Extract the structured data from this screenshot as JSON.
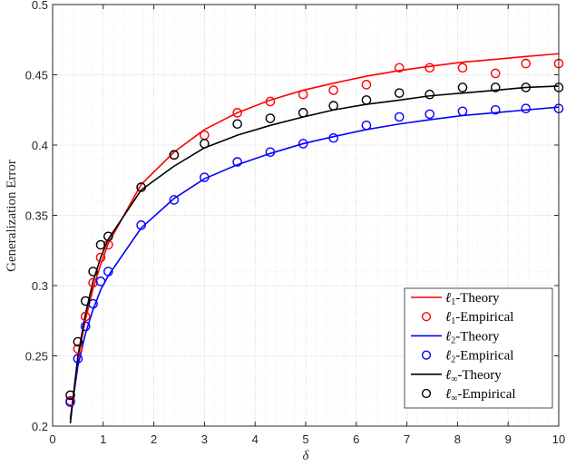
{
  "chart_data": {
    "type": "line",
    "title": "",
    "xlabel": "δ",
    "ylabel": "Generalization Error",
    "xlim": [
      0,
      10
    ],
    "ylim": [
      0.2,
      0.5
    ],
    "xticks": [
      0,
      1,
      2,
      3,
      4,
      5,
      6,
      7,
      8,
      9,
      10
    ],
    "yticks": [
      0.2,
      0.25,
      0.3,
      0.35,
      0.4,
      0.45,
      0.5
    ],
    "xtick_labels": [
      "0",
      "1",
      "2",
      "3",
      "4",
      "5",
      "6",
      "7",
      "8",
      "9",
      "10"
    ],
    "ytick_labels": [
      "0.2",
      "0.25",
      "0.3",
      "0.35",
      "0.4",
      "0.45",
      "0.5"
    ],
    "grid": true,
    "minor_grid": true,
    "legend_position": "lower right",
    "x": [
      0.35,
      0.5,
      0.65,
      0.8,
      0.95,
      1.1,
      1.75,
      2.4,
      3.0,
      3.65,
      4.3,
      4.95,
      5.55,
      6.2,
      6.85,
      7.45,
      8.1,
      8.75,
      9.35,
      10.0
    ],
    "series": [
      {
        "name": "ℓ1-Theory",
        "kind": "line",
        "color": "#ff0000",
        "values": [
          0.205,
          0.248,
          0.276,
          0.298,
          0.315,
          0.33,
          0.372,
          0.395,
          0.411,
          0.423,
          0.432,
          0.439,
          0.444,
          0.449,
          0.453,
          0.456,
          0.459,
          0.461,
          0.463,
          0.465
        ]
      },
      {
        "name": "ℓ1-Empirical",
        "kind": "marker",
        "color": "#ff0000",
        "values": [
          0.218,
          0.255,
          0.278,
          0.302,
          0.32,
          0.329,
          0.37,
          0.393,
          0.407,
          0.423,
          0.431,
          0.436,
          0.439,
          0.443,
          0.455,
          0.455,
          0.455,
          0.451,
          0.458,
          0.458
        ]
      },
      {
        "name": "ℓ2-Theory",
        "kind": "line",
        "color": "#0000ff",
        "values": [
          0.205,
          0.243,
          0.266,
          0.283,
          0.297,
          0.307,
          0.341,
          0.362,
          0.376,
          0.386,
          0.394,
          0.401,
          0.406,
          0.411,
          0.415,
          0.418,
          0.421,
          0.423,
          0.425,
          0.427
        ]
      },
      {
        "name": "ℓ2-Empirical",
        "kind": "marker",
        "color": "#0000ff",
        "values": [
          0.217,
          0.248,
          0.271,
          0.287,
          0.303,
          0.31,
          0.343,
          0.361,
          0.377,
          0.388,
          0.395,
          0.401,
          0.405,
          0.414,
          0.42,
          0.422,
          0.424,
          0.425,
          0.426,
          0.426
        ]
      },
      {
        "name": "ℓ∞-Theory",
        "kind": "line",
        "color": "#000000",
        "values": [
          0.202,
          0.25,
          0.28,
          0.303,
          0.32,
          0.333,
          0.368,
          0.385,
          0.398,
          0.407,
          0.414,
          0.42,
          0.425,
          0.429,
          0.432,
          0.435,
          0.437,
          0.439,
          0.441,
          0.442
        ]
      },
      {
        "name": "ℓ∞-Empirical",
        "kind": "marker",
        "color": "#000000",
        "values": [
          0.222,
          0.26,
          0.289,
          0.31,
          0.329,
          0.335,
          0.37,
          0.393,
          0.401,
          0.415,
          0.419,
          0.423,
          0.428,
          0.432,
          0.437,
          0.436,
          0.441,
          0.441,
          0.441,
          0.441
        ]
      }
    ]
  },
  "legend": {
    "items": [
      {
        "base": "ℓ",
        "sub": "1",
        "suffix": "-Theory",
        "kind": "line",
        "color": "#ff0000"
      },
      {
        "base": "ℓ",
        "sub": "1",
        "suffix": "-Empirical",
        "kind": "marker",
        "color": "#ff0000"
      },
      {
        "base": "ℓ",
        "sub": "2",
        "suffix": "-Theory",
        "kind": "line",
        "color": "#0000ff"
      },
      {
        "base": "ℓ",
        "sub": "2",
        "suffix": "-Empirical",
        "kind": "marker",
        "color": "#0000ff"
      },
      {
        "base": "ℓ",
        "sub": "∞",
        "suffix": "-Theory",
        "kind": "line",
        "color": "#000000"
      },
      {
        "base": "ℓ",
        "sub": "∞",
        "suffix": "-Empirical",
        "kind": "marker",
        "color": "#000000"
      }
    ]
  }
}
